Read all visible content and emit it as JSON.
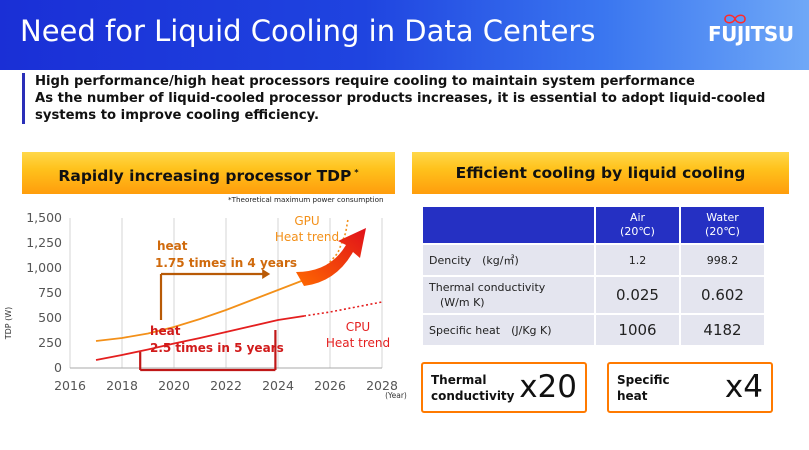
{
  "header": {
    "title": "Need for Liquid Cooling in Data Centers",
    "logo_text": "FUJITSU"
  },
  "intro": {
    "line1": "High performance/high heat processors require cooling to maintain system performance",
    "line2": "As the number of liquid-cooled processor products increases, it is essential to adopt liquid-cooled systems to improve cooling efficiency."
  },
  "left_panel": {
    "heading": "Rapidly increasing processor TDP",
    "heading_mark": "*",
    "footnote": "*Theoretical maximum power consumption"
  },
  "right_panel": {
    "heading": "Efficient cooling by liquid cooling"
  },
  "chart_data": {
    "type": "line",
    "ylabel": "TDP (W)",
    "xlabel": "(Year)",
    "xlim": [
      2016,
      2028
    ],
    "ylim": [
      0,
      1500
    ],
    "x_ticks": [
      "2016",
      "2018",
      "2020",
      "2022",
      "2024",
      "2026",
      "2028"
    ],
    "y_ticks": [
      "0",
      "250",
      "500",
      "750",
      "1,000",
      "1,250",
      "1,500"
    ],
    "grid": "vertical",
    "series": [
      {
        "name": "GPU",
        "color": "#f39019",
        "points": [
          [
            2017.0,
            270
          ],
          [
            2018.0,
            300
          ],
          [
            2019.0,
            345
          ],
          [
            2020.0,
            410
          ],
          [
            2021.0,
            490
          ],
          [
            2022.0,
            580
          ],
          [
            2023.0,
            680
          ],
          [
            2024.0,
            780
          ],
          [
            2025.0,
            880
          ]
        ],
        "trend": [
          [
            2025.0,
            880
          ],
          [
            2025.8,
            1000
          ],
          [
            2026.3,
            1150
          ],
          [
            2026.6,
            1350
          ],
          [
            2026.7,
            1500
          ]
        ]
      },
      {
        "name": "CPU",
        "color": "#e41f1f",
        "points": [
          [
            2017.0,
            80
          ],
          [
            2018.0,
            130
          ],
          [
            2019.0,
            185
          ],
          [
            2020.0,
            245
          ],
          [
            2021.0,
            300
          ],
          [
            2022.0,
            360
          ],
          [
            2023.0,
            420
          ],
          [
            2024.0,
            480
          ],
          [
            2025.0,
            520
          ]
        ],
        "trend": [
          [
            2025.0,
            520
          ],
          [
            2026.0,
            560
          ],
          [
            2027.0,
            610
          ],
          [
            2028.0,
            660
          ]
        ]
      }
    ],
    "annotations": {
      "gpu_label": "GPU",
      "gpu_trend_label": "Heat trend",
      "cpu_label": "CPU",
      "cpu_trend_label": "Heat trend",
      "gpu_heat_word": "heat",
      "gpu_heat_factor": "1.75 times in 4 years",
      "gpu_span_years": [
        2019.5,
        2023.7
      ],
      "cpu_heat_word": "heat",
      "cpu_heat_factor": "2.5 times in 5 years",
      "cpu_span_years": [
        2018.7,
        2023.9
      ]
    }
  },
  "cooling_table": {
    "columns": [
      {
        "name": "Air",
        "unit": "(20℃)"
      },
      {
        "name": "Water",
        "unit": "(20℃)"
      }
    ],
    "rows": [
      {
        "label": "Dencity　(kg/㎥)",
        "air": "1.2",
        "water": "998.2"
      },
      {
        "label": "Thermal conductivity",
        "label2": "　(W/m K)",
        "air": "0.025",
        "water": "0.602"
      },
      {
        "label": "Specific heat　(J/Kg K)",
        "air": "1006",
        "water": "4182"
      }
    ]
  },
  "ratios": [
    {
      "label1": "Thermal",
      "label2": "conductivity",
      "value": "x20"
    },
    {
      "label1": "Specific",
      "label2": "heat",
      "value": "x4"
    }
  ]
}
